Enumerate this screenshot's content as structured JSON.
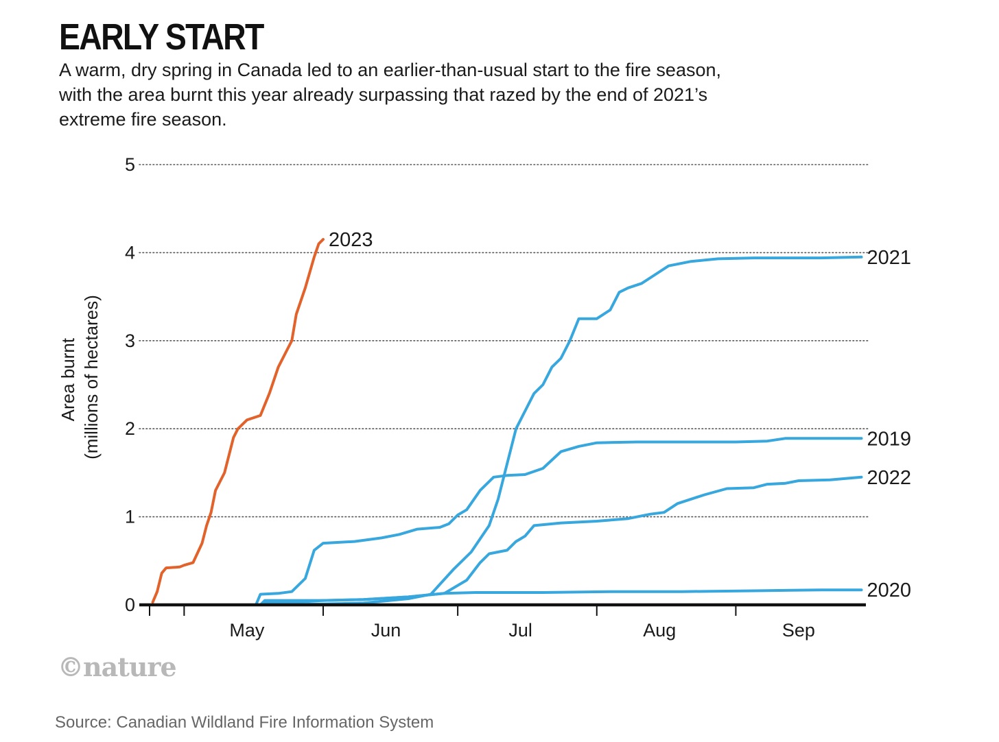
{
  "title": "EARLY START",
  "subtitle": "A warm, dry spring in Canada led to an earlier-than-usual start to the fire season, with the area burnt this year already surpassing that razed by the end of 2021’s extreme fire season.",
  "logo_text": "©nature",
  "source": "Source: Canadian Wildland Fire Information System",
  "colors": {
    "highlight": "#e2622b",
    "series": "#37a7dd",
    "axis": "#111111",
    "grid": "#555555"
  },
  "chart_data": {
    "type": "line",
    "title": "EARLY START",
    "ylabel_line1": "Area burnt",
    "ylabel_line2": "(millions of hectares)",
    "ylabel": "Area burnt (millions of hectares)",
    "xlabel": "",
    "ylim": [
      0,
      5
    ],
    "yticks": [
      "0",
      "1",
      "2",
      "3",
      "4",
      "5"
    ],
    "xlim": [
      "2023-04-21",
      "2023-09-30"
    ],
    "xticks": [
      {
        "label": "May",
        "date": "2023-05-15"
      },
      {
        "label": "Jun",
        "date": "2023-06-15"
      },
      {
        "label": "Jul",
        "date": "2023-07-15"
      },
      {
        "label": "Aug",
        "date": "2023-08-15"
      },
      {
        "label": "Sep",
        "date": "2023-09-15"
      }
    ],
    "month_boundaries": [
      "2023-05-01",
      "2023-06-01",
      "2023-07-01",
      "2023-08-01",
      "2023-09-01"
    ],
    "grid": "horizontal dotted",
    "legend": "none (direct labels at line ends)",
    "series": [
      {
        "name": "2021",
        "color": "#37a7dd",
        "points": [
          [
            "2023-05-18",
            0.0
          ],
          [
            "2023-06-01",
            0.01
          ],
          [
            "2023-06-10",
            0.02
          ],
          [
            "2023-06-20",
            0.07
          ],
          [
            "2023-06-25",
            0.12
          ],
          [
            "2023-06-30",
            0.4
          ],
          [
            "2023-07-04",
            0.6
          ],
          [
            "2023-07-08",
            0.9
          ],
          [
            "2023-07-10",
            1.2
          ],
          [
            "2023-07-12",
            1.6
          ],
          [
            "2023-07-14",
            2.0
          ],
          [
            "2023-07-16",
            2.2
          ],
          [
            "2023-07-18",
            2.4
          ],
          [
            "2023-07-20",
            2.5
          ],
          [
            "2023-07-22",
            2.7
          ],
          [
            "2023-07-24",
            2.8
          ],
          [
            "2023-07-26",
            3.0
          ],
          [
            "2023-07-28",
            3.25
          ],
          [
            "2023-08-01",
            3.25
          ],
          [
            "2023-08-04",
            3.35
          ],
          [
            "2023-08-06",
            3.55
          ],
          [
            "2023-08-08",
            3.6
          ],
          [
            "2023-08-11",
            3.65
          ],
          [
            "2023-08-14",
            3.75
          ],
          [
            "2023-08-17",
            3.85
          ],
          [
            "2023-08-22",
            3.9
          ],
          [
            "2023-08-28",
            3.93
          ],
          [
            "2023-09-05",
            3.94
          ],
          [
            "2023-09-20",
            3.94
          ],
          [
            "2023-09-29",
            3.95
          ]
        ]
      },
      {
        "name": "2019",
        "color": "#37a7dd",
        "points": [
          [
            "2023-05-17",
            0.0
          ],
          [
            "2023-05-18",
            0.12
          ],
          [
            "2023-05-22",
            0.13
          ],
          [
            "2023-05-25",
            0.15
          ],
          [
            "2023-05-28",
            0.3
          ],
          [
            "2023-05-30",
            0.62
          ],
          [
            "2023-06-01",
            0.7
          ],
          [
            "2023-06-08",
            0.72
          ],
          [
            "2023-06-14",
            0.76
          ],
          [
            "2023-06-18",
            0.8
          ],
          [
            "2023-06-22",
            0.86
          ],
          [
            "2023-06-27",
            0.88
          ],
          [
            "2023-06-29",
            0.92
          ],
          [
            "2023-07-01",
            1.02
          ],
          [
            "2023-07-03",
            1.08
          ],
          [
            "2023-07-06",
            1.3
          ],
          [
            "2023-07-09",
            1.45
          ],
          [
            "2023-07-12",
            1.47
          ],
          [
            "2023-07-16",
            1.48
          ],
          [
            "2023-07-20",
            1.55
          ],
          [
            "2023-07-24",
            1.74
          ],
          [
            "2023-07-28",
            1.8
          ],
          [
            "2023-08-01",
            1.84
          ],
          [
            "2023-08-10",
            1.85
          ],
          [
            "2023-08-20",
            1.85
          ],
          [
            "2023-09-01",
            1.85
          ],
          [
            "2023-09-08",
            1.86
          ],
          [
            "2023-09-12",
            1.89
          ],
          [
            "2023-09-20",
            1.89
          ],
          [
            "2023-09-29",
            1.89
          ]
        ]
      },
      {
        "name": "2022",
        "color": "#37a7dd",
        "points": [
          [
            "2023-05-18",
            0.0
          ],
          [
            "2023-05-19",
            0.05
          ],
          [
            "2023-05-25",
            0.05
          ],
          [
            "2023-06-01",
            0.05
          ],
          [
            "2023-06-10",
            0.06
          ],
          [
            "2023-06-20",
            0.09
          ],
          [
            "2023-06-28",
            0.13
          ],
          [
            "2023-07-03",
            0.28
          ],
          [
            "2023-07-06",
            0.48
          ],
          [
            "2023-07-08",
            0.58
          ],
          [
            "2023-07-12",
            0.62
          ],
          [
            "2023-07-14",
            0.72
          ],
          [
            "2023-07-16",
            0.78
          ],
          [
            "2023-07-18",
            0.9
          ],
          [
            "2023-07-24",
            0.93
          ],
          [
            "2023-08-01",
            0.95
          ],
          [
            "2023-08-08",
            0.98
          ],
          [
            "2023-08-13",
            1.03
          ],
          [
            "2023-08-16",
            1.05
          ],
          [
            "2023-08-19",
            1.15
          ],
          [
            "2023-08-25",
            1.25
          ],
          [
            "2023-08-30",
            1.32
          ],
          [
            "2023-09-05",
            1.33
          ],
          [
            "2023-09-08",
            1.37
          ],
          [
            "2023-09-12",
            1.38
          ],
          [
            "2023-09-15",
            1.41
          ],
          [
            "2023-09-22",
            1.42
          ],
          [
            "2023-09-29",
            1.45
          ]
        ]
      },
      {
        "name": "2020",
        "color": "#37a7dd",
        "points": [
          [
            "2023-05-18",
            0.0
          ],
          [
            "2023-05-19",
            0.03
          ],
          [
            "2023-05-26",
            0.03
          ],
          [
            "2023-06-01",
            0.05
          ],
          [
            "2023-06-10",
            0.06
          ],
          [
            "2023-06-20",
            0.09
          ],
          [
            "2023-06-28",
            0.13
          ],
          [
            "2023-07-05",
            0.14
          ],
          [
            "2023-07-20",
            0.14
          ],
          [
            "2023-08-05",
            0.15
          ],
          [
            "2023-08-20",
            0.15
          ],
          [
            "2023-09-05",
            0.16
          ],
          [
            "2023-09-20",
            0.17
          ],
          [
            "2023-09-29",
            0.17
          ]
        ]
      },
      {
        "name": "2023",
        "color": "#e2622b",
        "points": [
          [
            "2023-04-24",
            0.03
          ],
          [
            "2023-04-25",
            0.15
          ],
          [
            "2023-04-26",
            0.36
          ],
          [
            "2023-04-27",
            0.42
          ],
          [
            "2023-04-30",
            0.43
          ],
          [
            "2023-05-01",
            0.45
          ],
          [
            "2023-05-03",
            0.48
          ],
          [
            "2023-05-05",
            0.7
          ],
          [
            "2023-05-06",
            0.9
          ],
          [
            "2023-05-07",
            1.05
          ],
          [
            "2023-05-08",
            1.3
          ],
          [
            "2023-05-10",
            1.5
          ],
          [
            "2023-05-12",
            1.9
          ],
          [
            "2023-05-13",
            2.0
          ],
          [
            "2023-05-15",
            2.1
          ],
          [
            "2023-05-18",
            2.15
          ],
          [
            "2023-05-20",
            2.4
          ],
          [
            "2023-05-22",
            2.7
          ],
          [
            "2023-05-24",
            2.9
          ],
          [
            "2023-05-25",
            3.0
          ],
          [
            "2023-05-26",
            3.3
          ],
          [
            "2023-05-28",
            3.6
          ],
          [
            "2023-05-30",
            3.95
          ],
          [
            "2023-05-31",
            4.1
          ],
          [
            "2023-06-01",
            4.15
          ]
        ]
      }
    ]
  }
}
